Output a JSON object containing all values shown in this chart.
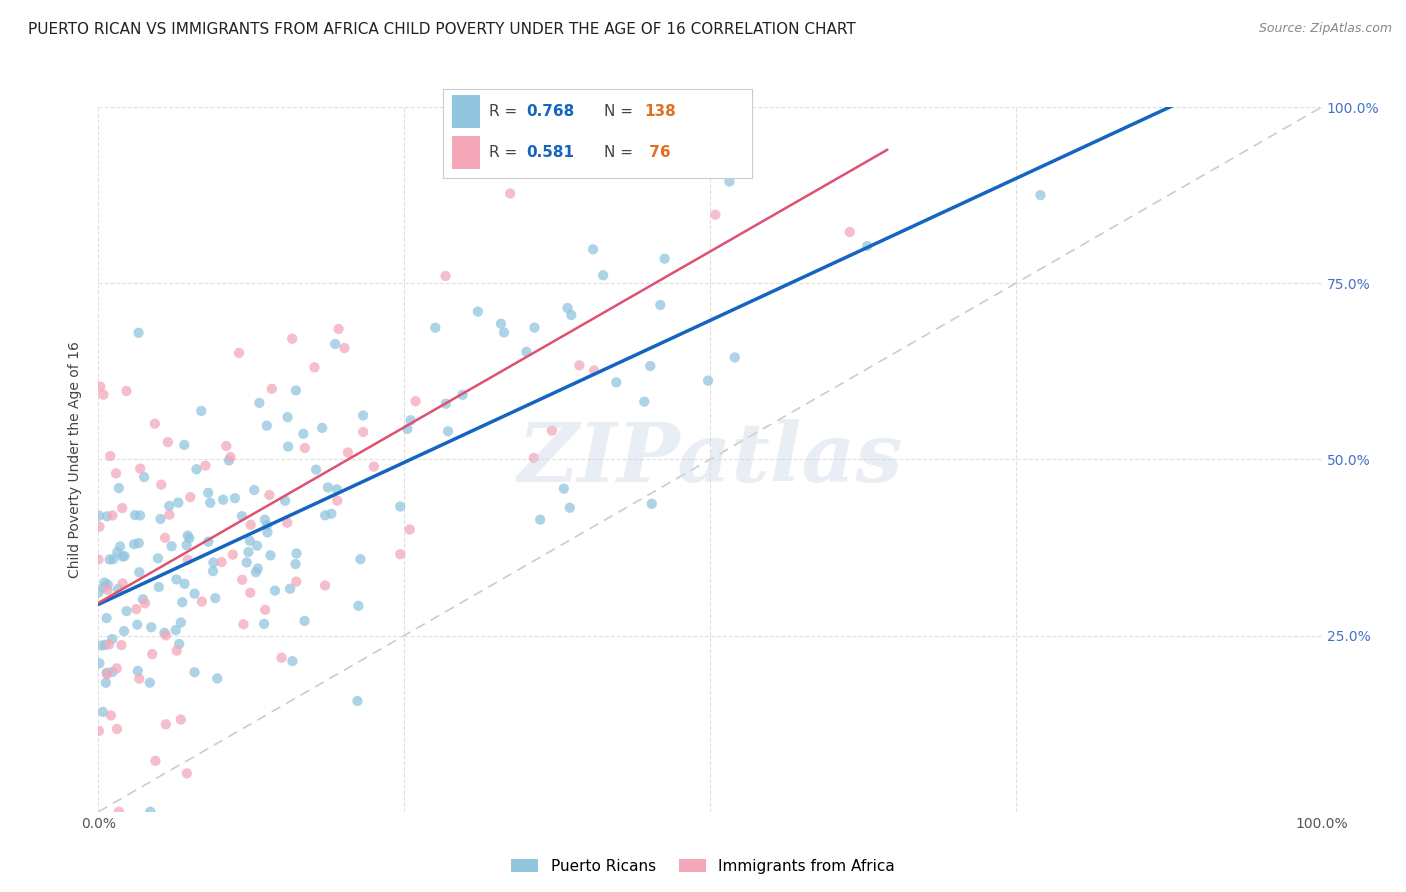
{
  "title": "PUERTO RICAN VS IMMIGRANTS FROM AFRICA CHILD POVERTY UNDER THE AGE OF 16 CORRELATION CHART",
  "source": "Source: ZipAtlas.com",
  "ylabel": "Child Poverty Under the Age of 16",
  "series1_label": "Puerto Ricans",
  "series1_color": "#92c5de",
  "series1_R": 0.768,
  "series1_N": 138,
  "series1_line_color": "#1565c0",
  "series2_label": "Immigrants from Africa",
  "series2_color": "#f4a7b9",
  "series2_R": 0.581,
  "series2_N": 76,
  "series2_line_color": "#e05070",
  "background_color": "#ffffff",
  "grid_color": "#e0e0e0",
  "watermark": "ZIPatlas",
  "title_fontsize": 11,
  "legend_R_color": "#1565c0",
  "legend_N_color": "#e07020",
  "right_tick_color": "#4472c4",
  "source_color": "#888888"
}
